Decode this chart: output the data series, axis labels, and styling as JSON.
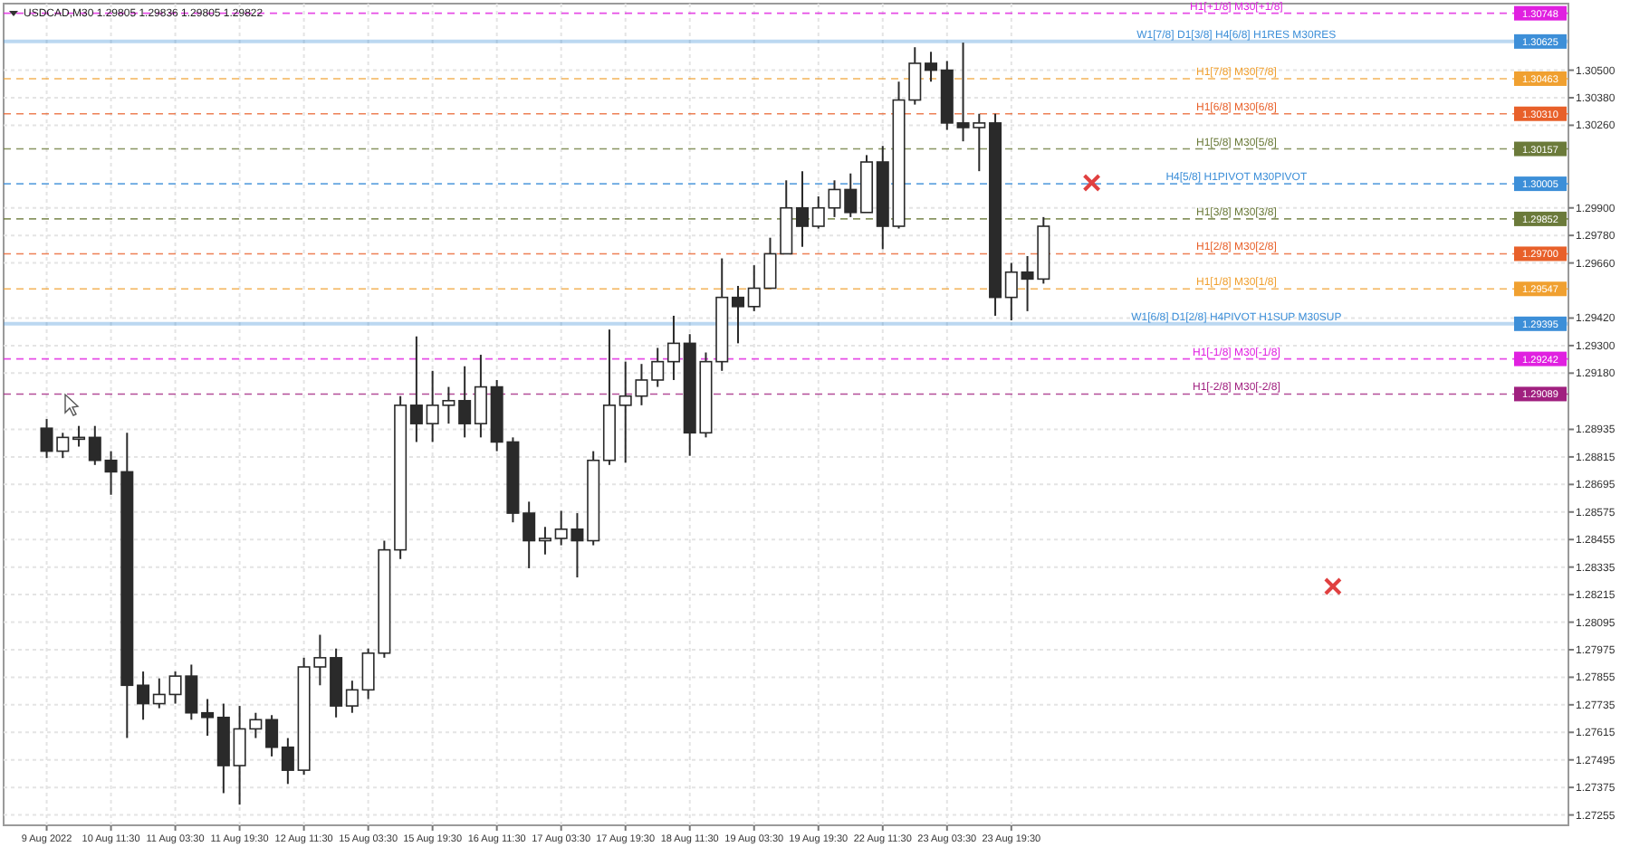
{
  "chart_data": {
    "type": "candlestick",
    "title": "USDCAD,M30  1.29805 1.29836 1.29805 1.29822",
    "color": "#2a2a2a",
    "grid": true,
    "categories": [
      "9 Aug 2022",
      null,
      null,
      null,
      "10 Aug 11:30",
      null,
      null,
      null,
      "11 Aug 03:30",
      null,
      null,
      null,
      "11 Aug 19:30",
      null,
      null,
      null,
      "12 Aug 11:30",
      null,
      null,
      null,
      "15 Aug 03:30",
      null,
      null,
      null,
      "15 Aug 19:30",
      null,
      null,
      null,
      "16 Aug 11:30",
      null,
      null,
      null,
      "17 Aug 03:30",
      null,
      null,
      null,
      "17 Aug 19:30",
      null,
      null,
      null,
      "18 Aug 11:30",
      null,
      null,
      null,
      "19 Aug 03:30",
      null,
      null,
      null,
      "19 Aug 19:30",
      null,
      null,
      null,
      "22 Aug 11:30",
      null,
      null,
      null,
      "23 Aug 03:30",
      null,
      null,
      null,
      "23 Aug 19:30",
      null,
      null,
      null,
      null,
      null,
      null,
      null,
      null,
      null,
      null,
      null,
      null,
      null,
      null,
      null,
      null,
      null,
      null,
      null,
      null,
      null,
      null,
      null,
      null,
      null,
      null,
      null,
      null,
      null,
      null,
      null,
      null,
      null,
      null
    ],
    "ohlc": [
      [
        1.2894,
        1.2898,
        1.2881,
        1.2884
      ],
      [
        1.2884,
        1.2892,
        1.2881,
        1.289
      ],
      [
        1.289,
        1.2895,
        1.2886,
        1.289
      ],
      [
        1.289,
        1.2895,
        1.2878,
        1.288
      ],
      [
        1.288,
        1.2884,
        1.2865,
        1.2875
      ],
      [
        1.2875,
        1.2892,
        1.2759,
        1.2782
      ],
      [
        1.2782,
        1.2788,
        1.2767,
        1.2774
      ],
      [
        1.2774,
        1.2785,
        1.2772,
        1.2778
      ],
      [
        1.2778,
        1.2788,
        1.2774,
        1.2786
      ],
      [
        1.2786,
        1.2791,
        1.2767,
        1.277
      ],
      [
        1.277,
        1.2776,
        1.276,
        1.2768
      ],
      [
        1.2768,
        1.2774,
        1.2735,
        1.2747
      ],
      [
        1.2747,
        1.2773,
        1.273,
        1.2763
      ],
      [
        1.2763,
        1.277,
        1.2759,
        1.2767
      ],
      [
        1.2767,
        1.2769,
        1.2751,
        1.2755
      ],
      [
        1.2755,
        1.2759,
        1.2739,
        1.2745
      ],
      [
        1.2745,
        1.2794,
        1.2743,
        1.279
      ],
      [
        1.279,
        1.2804,
        1.2782,
        1.2794
      ],
      [
        1.2794,
        1.2798,
        1.2768,
        1.2773
      ],
      [
        1.2773,
        1.2784,
        1.277,
        1.278
      ],
      [
        1.278,
        1.2798,
        1.2776,
        1.2796
      ],
      [
        1.2796,
        1.2845,
        1.2794,
        1.2841
      ],
      [
        1.2841,
        1.2908,
        1.2837,
        1.2904
      ],
      [
        1.2904,
        1.2934,
        1.2888,
        1.2896
      ],
      [
        1.2896,
        1.2919,
        1.2888,
        1.2904
      ],
      [
        1.2904,
        1.2912,
        1.2896,
        1.2906
      ],
      [
        1.2906,
        1.2921,
        1.289,
        1.2896
      ],
      [
        1.2896,
        1.2926,
        1.289,
        1.2912
      ],
      [
        1.2912,
        1.2915,
        1.2884,
        1.2888
      ],
      [
        1.2888,
        1.289,
        1.2853,
        1.2857
      ],
      [
        1.2857,
        1.2862,
        1.2833,
        1.2845
      ],
      [
        1.2845,
        1.2851,
        1.2839,
        1.2846
      ],
      [
        1.2846,
        1.2858,
        1.2843,
        1.285
      ],
      [
        1.285,
        1.2857,
        1.2829,
        1.2845
      ],
      [
        1.2845,
        1.2884,
        1.2843,
        1.288
      ],
      [
        1.288,
        1.2937,
        1.2878,
        1.2904
      ],
      [
        1.2904,
        1.2923,
        1.2879,
        1.2908
      ],
      [
        1.2908,
        1.2922,
        1.2904,
        1.2915
      ],
      [
        1.2915,
        1.2929,
        1.2912,
        1.2923
      ],
      [
        1.2923,
        1.2943,
        1.2915,
        1.2931
      ],
      [
        1.2931,
        1.2935,
        1.2882,
        1.2892
      ],
      [
        1.2892,
        1.2927,
        1.289,
        1.2923
      ],
      [
        1.2923,
        1.2968,
        1.2919,
        1.2951
      ],
      [
        1.2951,
        1.2956,
        1.2931,
        1.2947
      ],
      [
        1.2947,
        1.2965,
        1.2945,
        1.2955
      ],
      [
        1.2955,
        1.2977,
        1.2955,
        1.297
      ],
      [
        1.297,
        1.3002,
        1.297,
        1.299
      ],
      [
        1.299,
        1.3006,
        1.2973,
        1.2982
      ],
      [
        1.2982,
        1.2995,
        1.2981,
        1.299
      ],
      [
        1.299,
        1.3002,
        1.2986,
        1.2998
      ],
      [
        1.2998,
        1.3005,
        1.2986,
        1.2988
      ],
      [
        1.2988,
        1.3013,
        1.2988,
        1.301
      ],
      [
        1.301,
        1.3017,
        1.2972,
        1.2982
      ],
      [
        1.2982,
        1.3045,
        1.2981,
        1.3037
      ],
      [
        1.3037,
        1.306,
        1.3035,
        1.3053
      ],
      [
        1.3053,
        1.3058,
        1.3045,
        1.305
      ],
      [
        1.305,
        1.3054,
        1.3024,
        1.3027
      ],
      [
        1.3027,
        1.3062,
        1.3019,
        1.3025
      ],
      [
        1.3025,
        1.3031,
        1.3006,
        1.3027
      ],
      [
        1.3027,
        1.3031,
        1.2943,
        1.2951
      ],
      [
        1.2951,
        1.2966,
        1.2941,
        1.2962
      ],
      [
        1.2962,
        1.2969,
        1.2945,
        1.2959
      ],
      [
        1.2959,
        1.2986,
        1.2957,
        1.2982
      ],
      null,
      null,
      null,
      null,
      null,
      null,
      null,
      null,
      null,
      null,
      null,
      null,
      null,
      null,
      null,
      null,
      null,
      null,
      null,
      null,
      null,
      null,
      null,
      null,
      null,
      null,
      null,
      null,
      null,
      null,
      null,
      null
    ],
    "ylim": [
      1.2721,
      1.3079
    ],
    "yticks": [
      1.27255,
      1.27375,
      1.27495,
      1.27615,
      1.27735,
      1.27855,
      1.27975,
      1.28095,
      1.28215,
      1.28335,
      1.28455,
      1.28575,
      1.28695,
      1.28815,
      1.28935,
      {
        "value": 1.2918,
        "label": "1.29180"
      },
      {
        "value": 1.293,
        "label": "1.29300"
      },
      {
        "value": 1.2942,
        "label": "1.29420"
      },
      {
        "value": 1.2966,
        "label": "1.29660"
      },
      {
        "value": 1.2978,
        "label": "1.29780"
      },
      {
        "value": 1.299,
        "label": "1.29900"
      },
      {
        "value": 1.3026,
        "label": "1.30260"
      },
      {
        "value": 1.3038,
        "label": "1.30380"
      },
      {
        "value": 1.305,
        "label": "1.30500"
      }
    ],
    "annotations": [
      {
        "text": "1.30748",
        "y": 1.30748
      },
      {
        "text": "1.30625",
        "y": 1.30625
      },
      {
        "text": "1.30463",
        "y": 1.30463
      },
      {
        "text": "1.30310",
        "y": 1.3031
      },
      {
        "text": "1.30157",
        "y": 1.30157
      },
      {
        "text": "1.30005",
        "y": 1.30005
      },
      {
        "text": "1.29852",
        "y": 1.29852
      },
      {
        "text": "1.29700",
        "y": 1.297
      },
      {
        "text": "1.29547",
        "y": 1.29547
      },
      {
        "text": "1.29395",
        "y": 1.29395
      },
      {
        "text": "1.29242",
        "y": 1.29242
      },
      {
        "text": "1.29089",
        "y": 1.29089
      }
    ],
    "ref_lines": [
      {
        "axis": "y",
        "value": 1.30748,
        "label": "H1[+1/8] M30[+1/8]",
        "color": "#e020e0",
        "line_style": "dashed"
      },
      {
        "axis": "y",
        "value": 1.30625,
        "label": "W1[7/8] D1[3/8] H4[6/8] H1RES M30RES",
        "color": "#3d8fd8",
        "line_style": "solid"
      },
      {
        "axis": "y",
        "value": 1.30463,
        "label": "H1[7/8] M30[7/8]",
        "color": "#f0a030",
        "line_style": "dashed"
      },
      {
        "axis": "y",
        "value": 1.3031,
        "label": "H1[6/8] M30[6/8]",
        "color": "#e8602a",
        "line_style": "dashed"
      },
      {
        "axis": "y",
        "value": 1.30157,
        "label": "H1[5/8] M30[5/8]",
        "color": "#6b7a3a",
        "line_style": "dashed"
      },
      {
        "axis": "y",
        "value": 1.30005,
        "label": "H4[5/8] H1PIVOT M30PIVOT",
        "color": "#3d8fd8",
        "line_style": "dashed"
      },
      {
        "axis": "y",
        "value": 1.29852,
        "label": "H1[3/8] M30[3/8]",
        "color": "#6b7a3a",
        "line_style": "dashed"
      },
      {
        "axis": "y",
        "value": 1.297,
        "label": "H1[2/8] M30[2/8]",
        "color": "#e8602a",
        "line_style": "dashed"
      },
      {
        "axis": "y",
        "value": 1.29547,
        "label": "H1[1/8] M30[1/8]",
        "color": "#f0a030",
        "line_style": "dashed"
      },
      {
        "axis": "y",
        "value": 1.29395,
        "label": "W1[6/8] D1[2/8] H4PIVOT H1SUP M30SUP",
        "color": "#3d8fd8",
        "line_style": "solid"
      },
      {
        "axis": "y",
        "value": 1.29242,
        "label": "H1[-1/8] M30[-1/8]",
        "color": "#e020e0",
        "line_style": "dashed"
      },
      {
        "axis": "y",
        "value": 1.29089,
        "label": "H1[-2/8] M30[-2/8]",
        "color": "#a0207f",
        "line_style": "dashed"
      }
    ]
  }
}
